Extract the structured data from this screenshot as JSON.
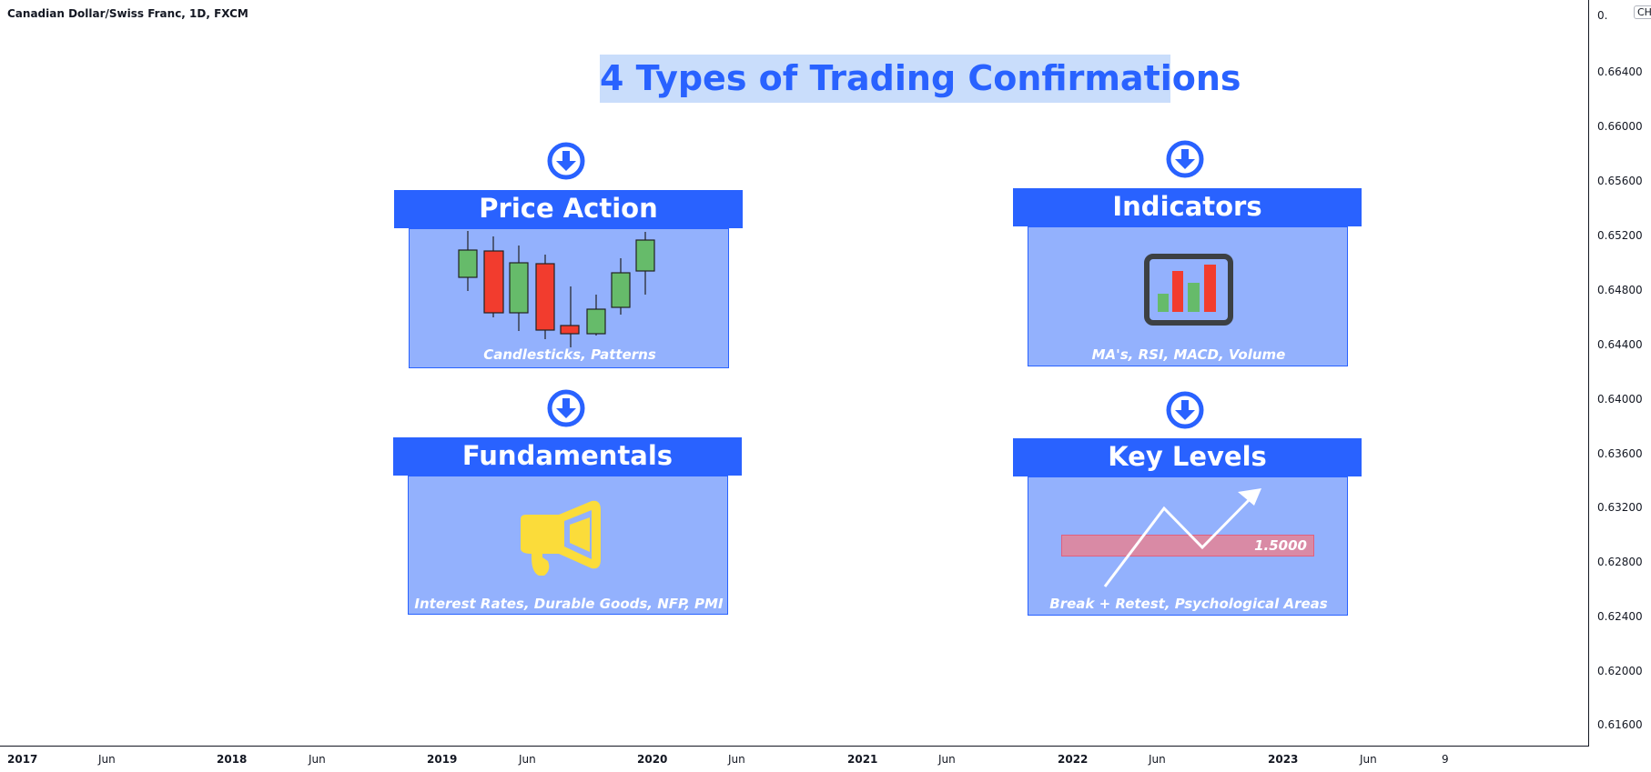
{
  "symbol_title": "Canadian Dollar/Swiss Franc, 1D, FXCM",
  "main_title": "4 Types of Trading Confirmations",
  "panels": {
    "price_action": {
      "title": "Price Action",
      "caption": "Candlesticks, Patterns",
      "icon": "candlestick-chart-icon"
    },
    "indicators": {
      "title": "Indicators",
      "caption": "MA's, RSI, MACD, Volume",
      "icon": "bar-chart-monitor-icon"
    },
    "fundamentals": {
      "title": "Fundamentals",
      "caption": "Interest Rates, Durable Goods, NFP, PMI",
      "icon": "megaphone-icon"
    },
    "key_levels": {
      "title": "Key Levels",
      "caption": "Break + Retest, Psychological Areas",
      "level_label": "1.5000",
      "icon": "zigzag-arrow-icon"
    }
  },
  "price_axis": {
    "currency": "CHF",
    "top_partial_label": "0.",
    "labels": [
      "0.66400",
      "0.66000",
      "0.65600",
      "0.65200",
      "0.64800",
      "0.64400",
      "0.64000",
      "0.63600",
      "0.63200",
      "0.62800",
      "0.62400",
      "0.62000",
      "0.61600"
    ]
  },
  "time_axis": {
    "labels": [
      "2017",
      "Jun",
      "2018",
      "Jun",
      "2019",
      "Jun",
      "2020",
      "Jun",
      "2021",
      "Jun",
      "2022",
      "Jun",
      "2023",
      "Jun",
      "9"
    ]
  },
  "colors": {
    "accent": "#2962ff",
    "panel_fill": "#93b1fd",
    "title_bg": "#c9ddfb",
    "bull_candle": "#66bb6a",
    "bear_candle": "#f23c2e",
    "megaphone": "#fbdc3a",
    "level_band": "#d98aa5"
  }
}
